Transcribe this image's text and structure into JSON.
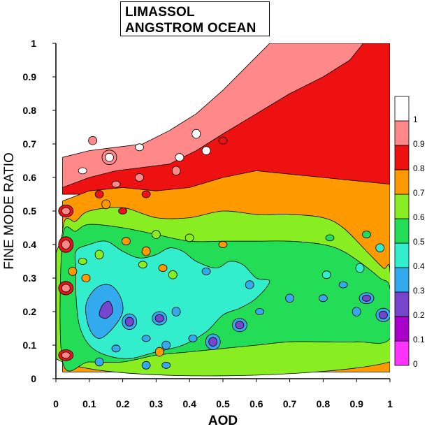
{
  "chart_data": {
    "type": "heatmap",
    "subtype": "filled-contour",
    "title_lines": [
      "LIMASSOL",
      "ANGSTROM OCEAN"
    ],
    "xlabel": "AOD",
    "ylabel": "FINE MODE RATIO",
    "xlim": [
      0,
      1
    ],
    "ylim": [
      0,
      1
    ],
    "xticks": [
      "0",
      "0.1",
      "0.2",
      "0.3",
      "0.4",
      "0.5",
      "0.6",
      "0.7",
      "0.8",
      "0.9",
      "1"
    ],
    "yticks": [
      "0",
      "0.1",
      "0.2",
      "0.3",
      "0.4",
      "0.5",
      "0.6",
      "0.7",
      "0.8",
      "0.9",
      "1"
    ],
    "colorbar": {
      "levels": [
        "0",
        "0.1",
        "0.2",
        "0.3",
        "0.4",
        "0.5",
        "0.6",
        "0.7",
        "0.8",
        "0.9",
        "1"
      ],
      "colors": [
        "#ff33ff",
        "#aa00cc",
        "#7744cc",
        "#33aaee",
        "#33eecc",
        "#22dd55",
        "#88ee22",
        "#ff9900",
        "#ee1111",
        "#ff8888",
        "#ffffff"
      ]
    },
    "bands": [
      {
        "range": "0.9-1",
        "color": "#ff8888",
        "poly": [
          [
            0.02,
            0.66
          ],
          [
            0.1,
            0.68
          ],
          [
            0.18,
            0.69
          ],
          [
            0.26,
            0.7
          ],
          [
            0.34,
            0.74
          ],
          [
            0.42,
            0.79
          ],
          [
            0.5,
            0.86
          ],
          [
            0.55,
            0.91
          ],
          [
            0.6,
            0.96
          ],
          [
            0.64,
            1.0
          ],
          [
            1.0,
            1.0
          ],
          [
            1.0,
            0.55
          ],
          [
            0.8,
            0.55
          ],
          [
            0.6,
            0.55
          ],
          [
            0.4,
            0.55
          ],
          [
            0.2,
            0.55
          ],
          [
            0.02,
            0.55
          ]
        ]
      },
      {
        "range": "0.8-0.9",
        "color": "#ee1111",
        "poly": [
          [
            0.02,
            0.57
          ],
          [
            0.1,
            0.6
          ],
          [
            0.18,
            0.62
          ],
          [
            0.26,
            0.63
          ],
          [
            0.34,
            0.64
          ],
          [
            0.42,
            0.68
          ],
          [
            0.5,
            0.73
          ],
          [
            0.6,
            0.79
          ],
          [
            0.7,
            0.85
          ],
          [
            0.8,
            0.9
          ],
          [
            0.88,
            0.95
          ],
          [
            0.92,
            1.0
          ],
          [
            1.0,
            1.0
          ],
          [
            1.0,
            0.55
          ],
          [
            0.02,
            0.55
          ]
        ]
      },
      {
        "range": "0.7-0.8",
        "color": "#ff9900",
        "poly": [
          [
            0.02,
            0.53
          ],
          [
            0.1,
            0.56
          ],
          [
            0.2,
            0.57
          ],
          [
            0.3,
            0.56
          ],
          [
            0.4,
            0.57
          ],
          [
            0.5,
            0.6
          ],
          [
            0.6,
            0.62
          ],
          [
            0.7,
            0.61
          ],
          [
            0.8,
            0.6
          ],
          [
            0.9,
            0.59
          ],
          [
            1.0,
            0.58
          ],
          [
            1.0,
            0.02
          ],
          [
            0.02,
            0.02
          ]
        ]
      },
      {
        "range": "0.6-0.7",
        "color": "#88ee22",
        "poly": [
          [
            0.02,
            0.44
          ],
          [
            0.06,
            0.47
          ],
          [
            0.1,
            0.5
          ],
          [
            0.2,
            0.51
          ],
          [
            0.3,
            0.48
          ],
          [
            0.4,
            0.48
          ],
          [
            0.5,
            0.5
          ],
          [
            0.6,
            0.49
          ],
          [
            0.7,
            0.49
          ],
          [
            0.8,
            0.48
          ],
          [
            0.86,
            0.45
          ],
          [
            0.93,
            0.38
          ],
          [
            0.98,
            0.33
          ],
          [
            1.0,
            0.32
          ],
          [
            1.0,
            0.05
          ],
          [
            0.02,
            0.05
          ]
        ]
      },
      {
        "range": "0.5-0.6",
        "color": "#22dd55",
        "poly": [
          [
            0.02,
            0.42
          ],
          [
            0.06,
            0.44
          ],
          [
            0.1,
            0.46
          ],
          [
            0.2,
            0.45
          ],
          [
            0.3,
            0.43
          ],
          [
            0.4,
            0.41
          ],
          [
            0.5,
            0.41
          ],
          [
            0.6,
            0.41
          ],
          [
            0.7,
            0.41
          ],
          [
            0.8,
            0.4
          ],
          [
            0.86,
            0.38
          ],
          [
            0.92,
            0.34
          ],
          [
            0.97,
            0.3
          ],
          [
            1.0,
            0.27
          ],
          [
            1.0,
            0.12
          ],
          [
            0.9,
            0.11
          ],
          [
            0.8,
            0.11
          ],
          [
            0.7,
            0.11
          ],
          [
            0.6,
            0.1
          ],
          [
            0.5,
            0.09
          ],
          [
            0.4,
            0.08
          ],
          [
            0.3,
            0.07
          ],
          [
            0.2,
            0.05
          ],
          [
            0.1,
            0.05
          ],
          [
            0.02,
            0.05
          ]
        ]
      },
      {
        "range": "0.4-0.5",
        "color": "#33eecc",
        "poly": [
          [
            0.06,
            0.38
          ],
          [
            0.1,
            0.4
          ],
          [
            0.15,
            0.41
          ],
          [
            0.2,
            0.38
          ],
          [
            0.25,
            0.36
          ],
          [
            0.3,
            0.37
          ],
          [
            0.34,
            0.39
          ],
          [
            0.38,
            0.38
          ],
          [
            0.42,
            0.35
          ],
          [
            0.48,
            0.33
          ],
          [
            0.52,
            0.35
          ],
          [
            0.56,
            0.34
          ],
          [
            0.6,
            0.3
          ],
          [
            0.64,
            0.29
          ],
          [
            0.6,
            0.24
          ],
          [
            0.55,
            0.21
          ],
          [
            0.5,
            0.19
          ],
          [
            0.45,
            0.14
          ],
          [
            0.38,
            0.1
          ],
          [
            0.3,
            0.08
          ],
          [
            0.22,
            0.06
          ],
          [
            0.15,
            0.07
          ],
          [
            0.1,
            0.1
          ],
          [
            0.07,
            0.16
          ],
          [
            0.06,
            0.25
          ],
          [
            0.06,
            0.32
          ]
        ]
      },
      {
        "range": "0.3-0.4",
        "color": "#33aaee",
        "poly": [
          [
            0.09,
            0.22
          ],
          [
            0.12,
            0.27
          ],
          [
            0.16,
            0.28
          ],
          [
            0.19,
            0.25
          ],
          [
            0.2,
            0.2
          ],
          [
            0.17,
            0.15
          ],
          [
            0.13,
            0.12
          ],
          [
            0.1,
            0.15
          ]
        ]
      },
      {
        "range": "0.2-0.3",
        "color": "#7744cc",
        "poly": [
          [
            0.14,
            0.22
          ],
          [
            0.16,
            0.23
          ],
          [
            0.17,
            0.2
          ],
          [
            0.15,
            0.18
          ],
          [
            0.13,
            0.19
          ]
        ]
      }
    ],
    "blobs": [
      {
        "x": 0.03,
        "y": 0.07,
        "levels": [
          "0.8-0.9",
          "0.9-1"
        ]
      },
      {
        "x": 0.03,
        "y": 0.27,
        "levels": [
          "0.8-0.9",
          "0.9-1"
        ]
      },
      {
        "x": 0.03,
        "y": 0.4,
        "levels": [
          "0.8-0.9",
          "0.9-1"
        ]
      },
      {
        "x": 0.03,
        "y": 0.5,
        "levels": [
          "0.8-0.9",
          "0.9-1"
        ]
      },
      {
        "x": 0.05,
        "y": 0.32,
        "levels": [
          "0.7-0.8"
        ]
      },
      {
        "x": 0.93,
        "y": 0.24,
        "levels": [
          "0.3-0.4",
          "0.2-0.3"
        ]
      },
      {
        "x": 0.98,
        "y": 0.19,
        "levels": [
          "0.3-0.4",
          "0.2-0.3"
        ]
      },
      {
        "x": 0.9,
        "y": 0.2,
        "levels": [
          "0.3-0.4"
        ]
      },
      {
        "x": 0.8,
        "y": 0.24,
        "levels": [
          "0.3-0.4"
        ]
      },
      {
        "x": 0.7,
        "y": 0.24,
        "levels": [
          "0.3-0.4"
        ]
      },
      {
        "x": 0.61,
        "y": 0.2,
        "levels": [
          "0.3-0.4"
        ]
      },
      {
        "x": 0.55,
        "y": 0.16,
        "levels": [
          "0.3-0.4",
          "0.2-0.3"
        ]
      },
      {
        "x": 0.47,
        "y": 0.11,
        "levels": [
          "0.3-0.4",
          "0.2-0.3"
        ]
      },
      {
        "x": 0.41,
        "y": 0.12,
        "levels": [
          "0.3-0.4"
        ]
      },
      {
        "x": 0.33,
        "y": 0.1,
        "levels": [
          "0.3-0.4"
        ]
      },
      {
        "x": 0.27,
        "y": 0.12,
        "levels": [
          "0.3-0.4"
        ]
      },
      {
        "x": 0.31,
        "y": 0.18,
        "levels": [
          "0.3-0.4",
          "0.2-0.3"
        ]
      },
      {
        "x": 0.36,
        "y": 0.2,
        "levels": [
          "0.3-0.4"
        ]
      },
      {
        "x": 0.45,
        "y": 0.32,
        "levels": [
          "0.3-0.4"
        ]
      },
      {
        "x": 0.58,
        "y": 0.28,
        "levels": [
          "0.3-0.4"
        ]
      },
      {
        "x": 0.86,
        "y": 0.28,
        "levels": [
          "0.3-0.4"
        ]
      },
      {
        "x": 0.81,
        "y": 0.31,
        "levels": [
          "0.4-0.5"
        ]
      },
      {
        "x": 0.91,
        "y": 0.33,
        "levels": [
          "0.4-0.5"
        ]
      },
      {
        "x": 0.18,
        "y": 0.09,
        "levels": [
          "0.3-0.4"
        ]
      },
      {
        "x": 0.13,
        "y": 0.05,
        "levels": [
          "0.3-0.4"
        ]
      },
      {
        "x": 0.33,
        "y": 0.04,
        "levels": [
          "0.3-0.4"
        ]
      },
      {
        "x": 0.27,
        "y": 0.04,
        "levels": [
          "0.3-0.4"
        ]
      },
      {
        "x": 0.22,
        "y": 0.17,
        "levels": [
          "0.3-0.4",
          "0.2-0.3"
        ]
      },
      {
        "x": 0.93,
        "y": 0.43,
        "levels": [
          "0.5-0.6"
        ]
      },
      {
        "x": 0.97,
        "y": 0.39,
        "levels": [
          "0.4-0.5"
        ]
      },
      {
        "x": 0.82,
        "y": 0.42,
        "levels": [
          "0.5-0.6"
        ]
      },
      {
        "x": 0.21,
        "y": 0.41,
        "levels": [
          "0.7-0.8"
        ]
      },
      {
        "x": 0.27,
        "y": 0.38,
        "levels": [
          "0.7-0.8"
        ]
      },
      {
        "x": 0.32,
        "y": 0.33,
        "levels": [
          "0.7-0.8"
        ]
      },
      {
        "x": 0.3,
        "y": 0.43,
        "levels": [
          "0.6-0.7"
        ]
      },
      {
        "x": 0.2,
        "y": 0.5,
        "levels": [
          "0.8-0.9"
        ]
      },
      {
        "x": 0.13,
        "y": 0.55,
        "levels": [
          "0.8-0.9"
        ]
      },
      {
        "x": 0.15,
        "y": 0.52,
        "levels": [
          "0.7-0.8"
        ]
      },
      {
        "x": 0.27,
        "y": 0.55,
        "levels": [
          "0.8-0.9"
        ]
      },
      {
        "x": 0.16,
        "y": 0.66,
        "levels": [
          "0.9-1",
          "1"
        ]
      },
      {
        "x": 0.18,
        "y": 0.58,
        "levels": [
          "0.9-1"
        ]
      },
      {
        "x": 0.25,
        "y": 0.6,
        "levels": [
          "0.9-1"
        ]
      },
      {
        "x": 0.36,
        "y": 0.62,
        "levels": [
          "0.9-1"
        ]
      },
      {
        "x": 0.25,
        "y": 0.69,
        "levels": [
          "1"
        ]
      },
      {
        "x": 0.11,
        "y": 0.71,
        "levels": [
          "0.9-1"
        ]
      },
      {
        "x": 0.08,
        "y": 0.62,
        "levels": [
          "1"
        ]
      },
      {
        "x": 0.37,
        "y": 0.66,
        "levels": [
          "1"
        ]
      },
      {
        "x": 0.42,
        "y": 0.73,
        "levels": [
          "1"
        ]
      },
      {
        "x": 0.5,
        "y": 0.71,
        "levels": [
          "0.8-0.9"
        ]
      },
      {
        "x": 0.45,
        "y": 0.68,
        "levels": [
          "1"
        ]
      },
      {
        "x": 0.08,
        "y": 0.35,
        "levels": [
          "0.6-0.7"
        ]
      },
      {
        "x": 0.09,
        "y": 0.3,
        "levels": [
          "0.7-0.8"
        ]
      },
      {
        "x": 0.13,
        "y": 0.37,
        "levels": [
          "0.6-0.7"
        ]
      },
      {
        "x": 0.26,
        "y": 0.34,
        "levels": [
          "0.6-0.7"
        ]
      },
      {
        "x": 0.35,
        "y": 0.31,
        "levels": [
          "0.6-0.7"
        ]
      },
      {
        "x": 0.5,
        "y": 0.4,
        "levels": [
          "0.7-0.8"
        ]
      },
      {
        "x": 0.4,
        "y": 0.42,
        "levels": [
          "0.6-0.7"
        ]
      },
      {
        "x": 0.31,
        "y": 0.08,
        "levels": [
          "0.7-0.8"
        ]
      }
    ]
  }
}
